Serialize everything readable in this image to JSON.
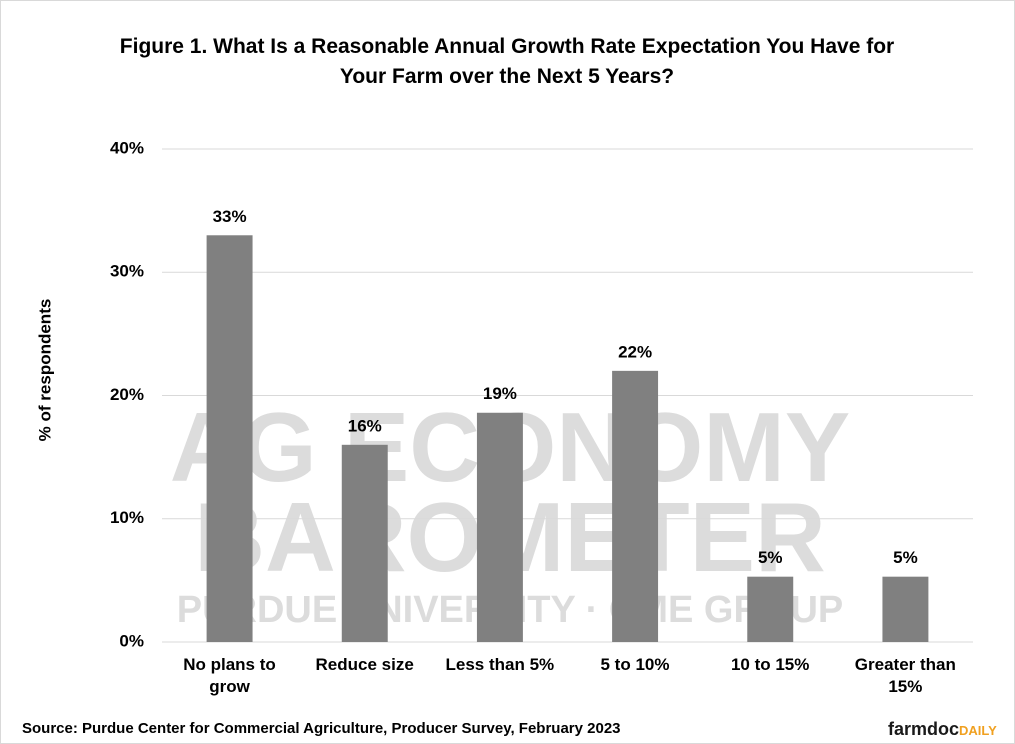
{
  "chart_data": {
    "type": "bar",
    "title": "Figure 1. What Is a Reasonable Annual Growth Rate Expectation You Have for Your Farm over the Next 5 Years?",
    "y_label": "% of respondents",
    "categories": [
      "No plans to grow",
      "Reduce size",
      "Less than 5%",
      "5 to 10%",
      "10 to 15%",
      "Greater than 15%"
    ],
    "values": [
      33,
      16,
      18.6,
      22,
      5.3,
      5.3
    ],
    "value_labels": [
      "33%",
      "16%",
      "19%",
      "22%",
      "5%",
      "5%"
    ],
    "color": "#808080",
    "ylim": [
      0,
      40
    ],
    "yticks": [
      {
        "value": 0,
        "label": "0%"
      },
      {
        "value": 10,
        "label": "10%"
      },
      {
        "value": 20,
        "label": "20%"
      },
      {
        "value": 30,
        "label": "30%"
      },
      {
        "value": 40,
        "label": "40%"
      }
    ],
    "grid": true,
    "watermark": [
      "AG ECONOMY",
      "BAROMETER",
      "PURDUE UNIVERSITY · CME GROUP"
    ],
    "source": "Source: Purdue Center for Commercial Agriculture, Producer Survey, February 2023",
    "brand": [
      "farmdoc",
      "DAILY"
    ]
  }
}
